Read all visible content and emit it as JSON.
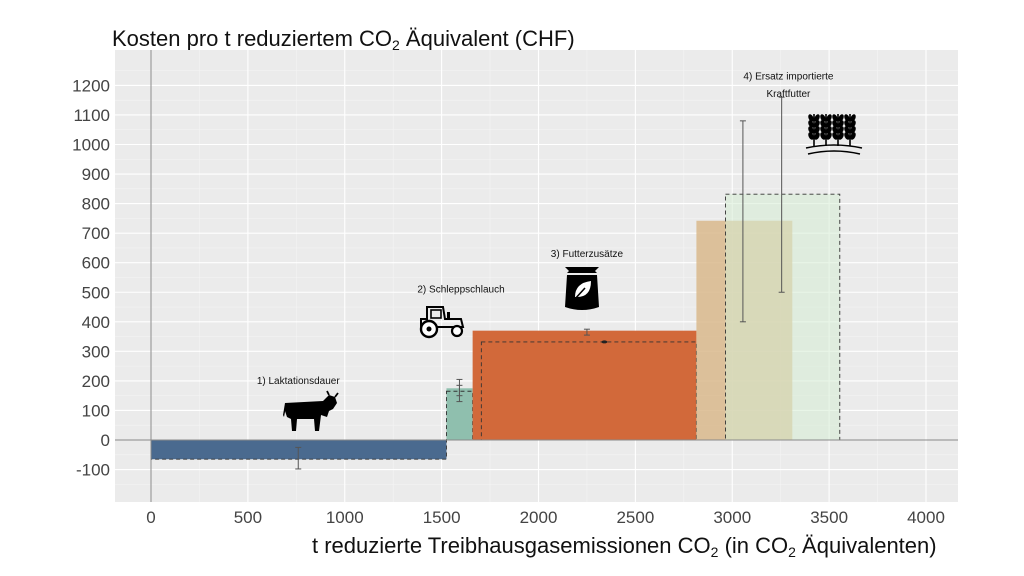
{
  "chart_data": {
    "type": "bar",
    "title_parts": {
      "main": "Kosten pro t reduziertem CO",
      "sub": "2",
      "tail": " Äquivalent (CHF)"
    },
    "xlabel_parts": {
      "main": "t reduzierte Treibhausgasemissionen CO",
      "sub1": "2",
      "mid": " (in CO",
      "sub2": "2",
      "tail": " Äquivalenten)"
    },
    "xlim": [
      -170,
      4200
    ],
    "ylim": [
      -210,
      1300
    ],
    "xticks": [
      0,
      500,
      1000,
      1500,
      2000,
      2500,
      3000,
      3500,
      4000
    ],
    "yticks": [
      -100,
      0,
      100,
      200,
      300,
      400,
      500,
      600,
      700,
      800,
      900,
      1000,
      1100,
      1200
    ],
    "grid": true,
    "labels": [
      {
        "text": "1) Laktationsdauer",
        "x": 760,
        "y": 190,
        "icon": "cow-icon"
      },
      {
        "text": "2) Schleppschlauch",
        "x": 1600,
        "y": 500,
        "icon": "tractor-icon"
      },
      {
        "text": "3) Futterzusätze",
        "x": 2250,
        "y": 620,
        "icon": "feed-bag-icon"
      },
      {
        "text": "4) Ersatz importierte",
        "x": 3290,
        "y": 1220,
        "icon": "wheat-icon"
      },
      {
        "text": "Kraftfutter",
        "x": 3290,
        "y": 1160
      }
    ],
    "bars": [
      {
        "x0": 0,
        "x1": 1525,
        "y": -65,
        "color": "#4a6a8f",
        "opacity": 1.0,
        "dashed": true
      },
      {
        "x0": 1525,
        "x1": 1660,
        "y": 175,
        "color": "#8fbfae",
        "opacity": 1.0,
        "dashed": false
      },
      {
        "x0": 1525,
        "x1": 1660,
        "y": 165,
        "color": "none",
        "opacity": 1.0,
        "dashed": true
      },
      {
        "x0": 1660,
        "x1": 2815,
        "y": 370,
        "color": "#d2693a",
        "opacity": 1.0,
        "dashed": false
      },
      {
        "x0": 1705,
        "x1": 2815,
        "y": 332,
        "color": "none",
        "opacity": 1.0,
        "dashed": true
      },
      {
        "x0": 2815,
        "x1": 3310,
        "y": 742,
        "color": "#d9b88c",
        "opacity": 0.85,
        "dashed": false
      },
      {
        "x0": 2965,
        "x1": 3555,
        "y": 832,
        "color": "#d6ecd3",
        "opacity": 0.55,
        "dashed": true
      }
    ],
    "error_bars": [
      {
        "x": 760,
        "low": -98,
        "high": -25
      },
      {
        "x": 1592,
        "low": 130,
        "high": 205
      },
      {
        "x": 1592,
        "low": 150,
        "high": 185
      },
      {
        "x": 2250,
        "low": 355,
        "high": 375
      },
      {
        "x": 3055,
        "low": 400,
        "high": 1080
      },
      {
        "x": 3255,
        "low": 500,
        "high": 1160
      }
    ],
    "markers": [
      {
        "x": 2340,
        "y": 332
      }
    ]
  }
}
